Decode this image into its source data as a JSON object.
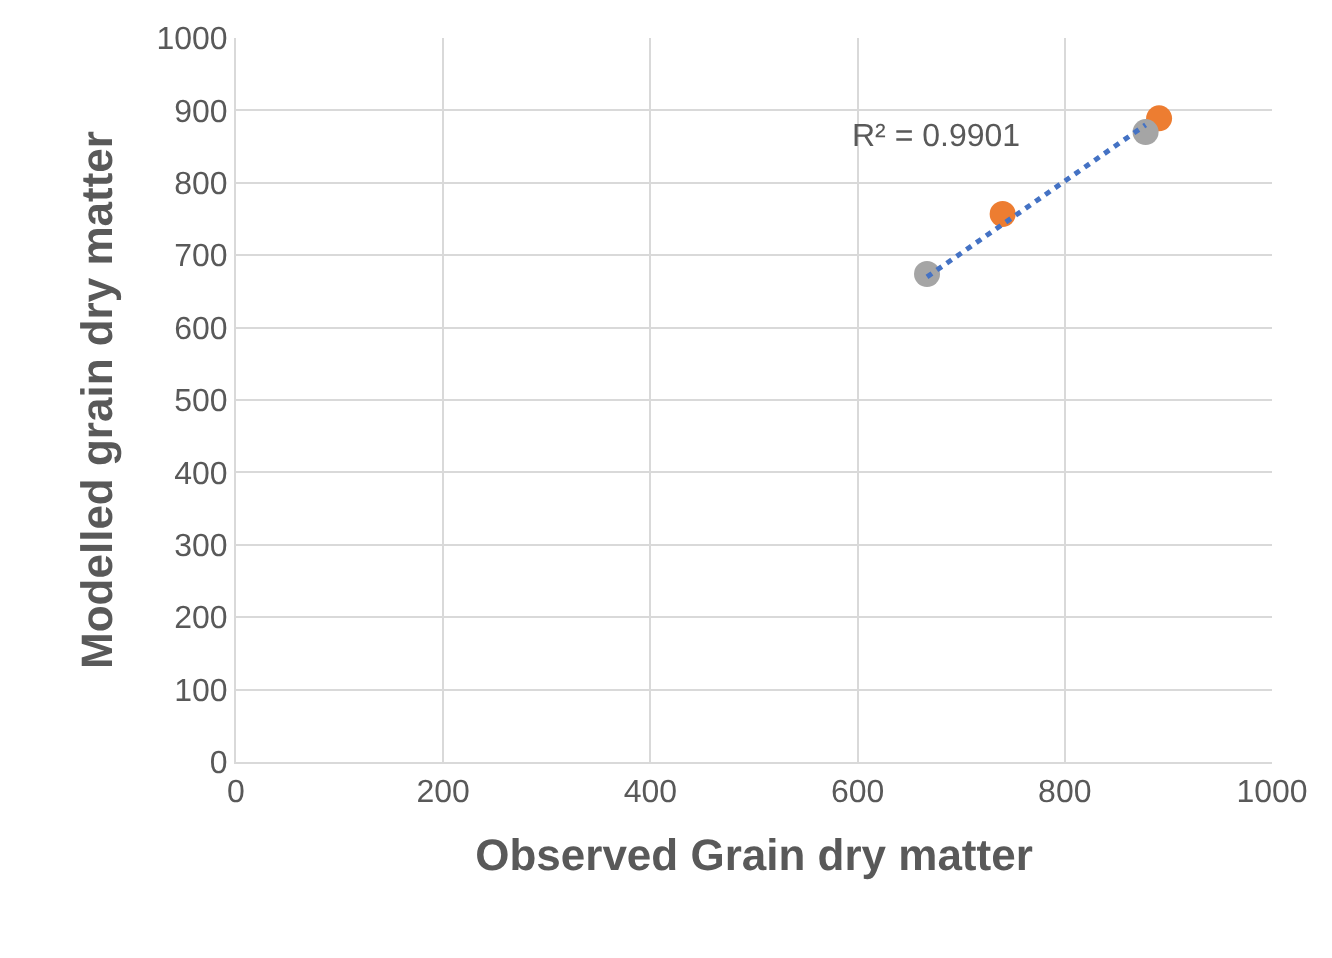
{
  "chart_data": {
    "type": "scatter",
    "xlabel": "Observed Grain dry matter",
    "ylabel": "Modelled grain dry matter",
    "series": [
      {
        "color": "#ed7d31",
        "x": [
          740,
          891
        ],
        "values": [
          757,
          889
        ]
      },
      {
        "color": "#a5a5a5",
        "x": [
          667,
          878
        ],
        "values": [
          674,
          870
        ]
      },
      {
        "type": "line",
        "marker": "none",
        "color": "#4472c4",
        "line_style": "dotted",
        "x": [
          667,
          878
        ],
        "values": [
          670,
          880
        ]
      }
    ],
    "annotations": [
      "R² = 0.9901"
    ],
    "xlim": [
      0,
      1000
    ],
    "xticks": [
      0,
      200,
      400,
      600,
      800,
      1000
    ],
    "ylim": [
      0,
      1000
    ],
    "yticks": [
      0,
      100,
      200,
      300,
      400,
      500,
      600,
      700,
      800,
      900,
      1000
    ],
    "grid": true,
    "legend": false,
    "marker": "circle"
  }
}
